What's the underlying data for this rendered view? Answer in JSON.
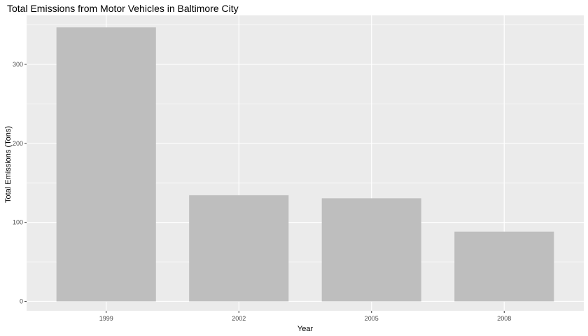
{
  "chart_data": {
    "type": "bar",
    "title": "Total Emissions from Motor Vehicles in Baltimore City",
    "xlabel": "Year",
    "ylabel": "Total Emissions (Tons)",
    "categories": [
      "1999",
      "2002",
      "2005",
      "2008"
    ],
    "values": [
      346.8,
      134.3,
      130.4,
      88.3
    ],
    "ylim": [
      -12,
      362
    ],
    "yticks": [
      0,
      100,
      200,
      300
    ],
    "ytick_labels": [
      "0",
      "100",
      "200",
      "300"
    ],
    "grid": true,
    "legend": "none",
    "colors": {
      "bar": "#bebebe",
      "panel": "#ebebeb",
      "grid_major": "#ffffff",
      "tick": "#333333"
    }
  }
}
